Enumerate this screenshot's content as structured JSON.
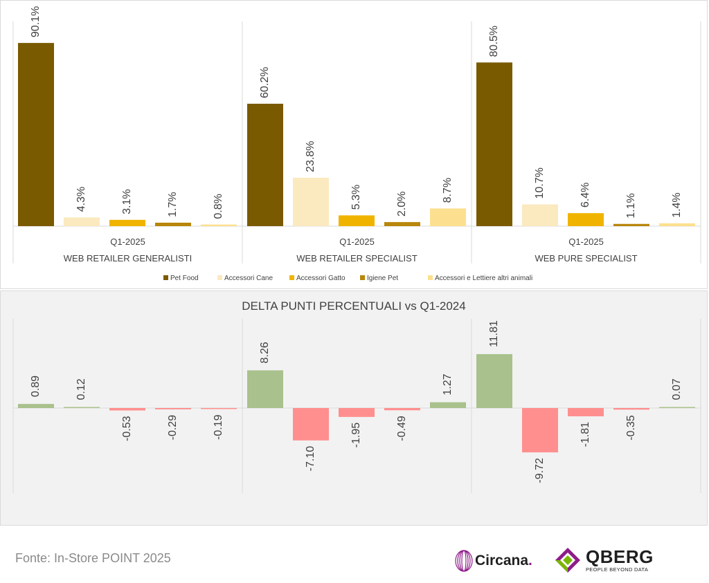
{
  "chart_data": [
    {
      "type": "bar",
      "title": "",
      "groups": [
        {
          "period": "Q1-2025",
          "label": "WEB RETAILER GENERALISTI",
          "values": [
            90.1,
            4.3,
            3.1,
            1.7,
            0.8
          ],
          "value_labels": [
            "90.1%",
            "4.3%",
            "3.1%",
            "1.7%",
            "0.8%"
          ]
        },
        {
          "period": "Q1-2025",
          "label": "WEB RETAILER SPECIALIST",
          "values": [
            60.2,
            23.8,
            5.3,
            2.0,
            8.7
          ],
          "value_labels": [
            "60.2%",
            "23.8%",
            "5.3%",
            "2.0%",
            "8.7%"
          ]
        },
        {
          "period": "Q1-2025",
          "label": "WEB PURE SPECIALIST",
          "values": [
            80.5,
            10.7,
            6.4,
            1.1,
            1.4
          ],
          "value_labels": [
            "80.5%",
            "10.7%",
            "6.4%",
            "1.1%",
            "1.4%"
          ]
        }
      ],
      "series": [
        {
          "name": "Pet Food",
          "color": "#7a5a00"
        },
        {
          "name": "Accessori Cane",
          "color": "#fbe9c0"
        },
        {
          "name": "Accessori Gatto",
          "color": "#f0b400"
        },
        {
          "name": "Igiene Pet",
          "color": "#b8860b"
        },
        {
          "name": "Accessori e Lettiere altri animali",
          "color": "#fce08f"
        }
      ],
      "ylim": [
        0,
        100
      ],
      "legend": "bottom"
    },
    {
      "type": "bar",
      "title": "DELTA PUNTI PERCENTUALI vs Q1-2024",
      "groups": [
        {
          "values": [
            0.89,
            0.12,
            -0.53,
            -0.29,
            -0.19
          ],
          "value_labels": [
            "0.89",
            "0.12",
            "-0.53",
            "-0.29",
            "-0.19"
          ]
        },
        {
          "values": [
            8.26,
            -7.1,
            -1.95,
            -0.49,
            1.27
          ],
          "value_labels": [
            "8.26",
            "-7.10",
            "-1.95",
            "-0.49",
            "1.27"
          ]
        },
        {
          "values": [
            11.81,
            -9.72,
            -1.81,
            -0.35,
            0.07
          ],
          "value_labels": [
            "11.81",
            "-9.72",
            "-1.81",
            "-0.35",
            "0.07"
          ]
        }
      ],
      "positive_color": "#a9c18c",
      "negative_color": "#ff8f8f",
      "ylim": [
        -14,
        14
      ]
    }
  ],
  "footer": {
    "source": "Fonte: In-Store POINT 2025",
    "circana_name": "Circana",
    "circana_dot": ".",
    "qberg_name": "QBERG",
    "qberg_tagline": "PEOPLE BEYOND DATA"
  },
  "colors": {
    "text": "#404040",
    "axis": "#d9d9d9",
    "circana_accent": "#8e1c8a",
    "qberg_green": "#7ab800",
    "qberg_purple": "#8e1c8a"
  }
}
